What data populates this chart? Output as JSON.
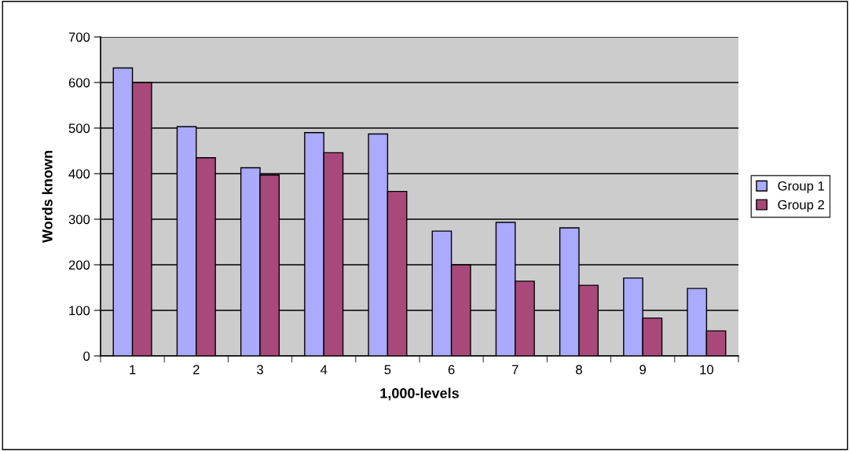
{
  "chart_data": {
    "type": "bar",
    "xlabel": "1,000-levels",
    "ylabel": "Words known",
    "categories": [
      "1",
      "2",
      "3",
      "4",
      "5",
      "6",
      "7",
      "8",
      "9",
      "10"
    ],
    "series": [
      {
        "name": "Group 1",
        "color": "#aaaaff",
        "values": [
          632,
          503,
          413,
          490,
          487,
          274,
          293,
          281,
          171,
          148
        ]
      },
      {
        "name": "Group 2",
        "color": "#a9497a",
        "values": [
          600,
          435,
          397,
          446,
          361,
          200,
          164,
          155,
          83,
          55
        ]
      }
    ],
    "ylim": [
      0,
      700
    ],
    "yticks": [
      0,
      100,
      200,
      300,
      400,
      500,
      600,
      700
    ],
    "grid": "y",
    "legend": "right"
  }
}
